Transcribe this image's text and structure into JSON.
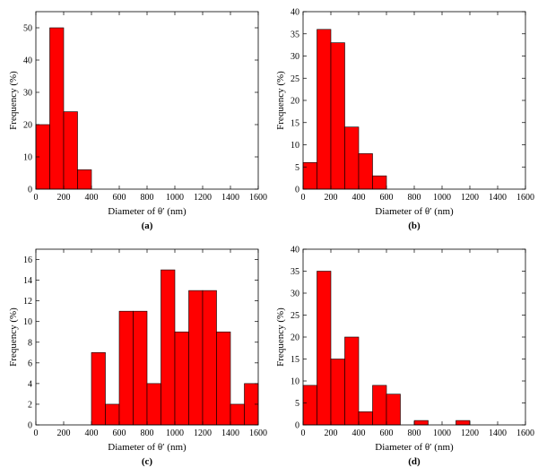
{
  "chart_data": [
    {
      "type": "bar",
      "panel_label": "(a)",
      "xlabel": "Diameter of θ′ (nm)",
      "ylabel": "Frequency (%)",
      "xlim": [
        0,
        1600
      ],
      "ylim": [
        0,
        55
      ],
      "x_ticks": [
        0,
        200,
        400,
        600,
        800,
        1000,
        1200,
        1400,
        1600
      ],
      "y_ticks": [
        0,
        10,
        20,
        30,
        40,
        50
      ],
      "bin_width": 100,
      "bin_starts": [
        0,
        100,
        200,
        300
      ],
      "values": [
        20,
        50,
        24,
        6
      ],
      "bar_color": "#ff0000",
      "grid": false
    },
    {
      "type": "bar",
      "panel_label": "(b)",
      "xlabel": "Diameter of θ′ (nm)",
      "ylabel": "Frequency (%)",
      "xlim": [
        0,
        1600
      ],
      "ylim": [
        0,
        40
      ],
      "x_ticks": [
        0,
        200,
        400,
        600,
        800,
        1000,
        1200,
        1400,
        1600
      ],
      "y_ticks": [
        0,
        5,
        10,
        15,
        20,
        25,
        30,
        35,
        40
      ],
      "bin_width": 100,
      "bin_starts": [
        0,
        100,
        200,
        300,
        400,
        500
      ],
      "values": [
        6,
        36,
        33,
        14,
        8,
        3
      ],
      "bar_color": "#ff0000",
      "grid": false
    },
    {
      "type": "bar",
      "panel_label": "(c)",
      "xlabel": "Diameter of θ′ (nm)",
      "ylabel": "Frequency (%)",
      "xlim": [
        0,
        1600
      ],
      "ylim": [
        0,
        17
      ],
      "x_ticks": [
        0,
        200,
        400,
        600,
        800,
        1000,
        1200,
        1400,
        1600
      ],
      "y_ticks": [
        0,
        2,
        4,
        6,
        8,
        10,
        12,
        14,
        16
      ],
      "bin_width": 100,
      "bin_starts": [
        400,
        500,
        600,
        700,
        800,
        900,
        1000,
        1100,
        1200,
        1300,
        1400,
        1500
      ],
      "values": [
        7,
        2,
        11,
        11,
        4,
        15,
        9,
        13,
        13,
        9,
        2,
        4
      ],
      "bar_color": "#ff0000",
      "grid": false
    },
    {
      "type": "bar",
      "panel_label": "(d)",
      "xlabel": "Diameter of θ′ (nm)",
      "ylabel": "Frequency (%)",
      "xlim": [
        0,
        1600
      ],
      "ylim": [
        0,
        40
      ],
      "x_ticks": [
        0,
        200,
        400,
        600,
        800,
        1000,
        1200,
        1400,
        1600
      ],
      "y_ticks": [
        0,
        5,
        10,
        15,
        20,
        25,
        30,
        35,
        40
      ],
      "bin_width": 100,
      "bin_starts": [
        0,
        100,
        200,
        300,
        400,
        500,
        600,
        800,
        1100
      ],
      "values": [
        9,
        35,
        15,
        20,
        3,
        9,
        7,
        1,
        1
      ],
      "bar_color": "#ff0000",
      "grid": false
    }
  ]
}
